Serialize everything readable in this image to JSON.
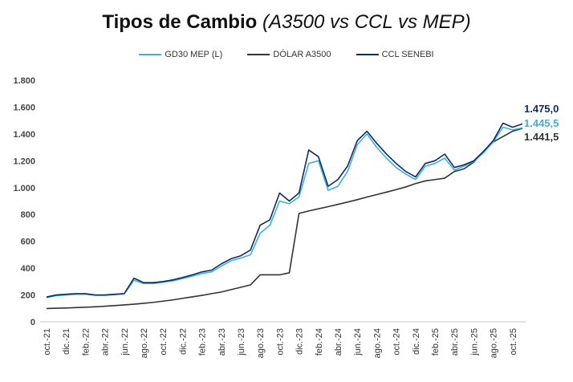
{
  "chart_data": {
    "type": "line",
    "title": "Tipos de Cambio",
    "subtitle": "(A3500 vs CCL vs MEP)",
    "xlabel": "",
    "ylabel": "",
    "ylim": [
      0,
      1800
    ],
    "yticks": [
      0,
      200,
      400,
      600,
      800,
      1000,
      1200,
      1400,
      1600,
      1800
    ],
    "ytick_labels": [
      "0",
      "200",
      "400",
      "600",
      "800",
      "1.000",
      "1.200",
      "1.400",
      "1.600",
      "1.800"
    ],
    "xtick_labels": [
      "oct.-21",
      "dic.-21",
      "feb.-22",
      "abr.-22",
      "jun.-22",
      "ago.-22",
      "oct.-22",
      "dic.-22",
      "feb.-23",
      "abr.-23",
      "jun.-23",
      "ago.-23",
      "oct.-23",
      "dic.-23",
      "feb.-24",
      "abr.-24",
      "jun.-24",
      "ago.-24",
      "oct.-24",
      "dic.-24",
      "feb.-25",
      "abr.-25",
      "jun.-25",
      "ago.-25",
      "oct.-25"
    ],
    "x": [
      "oct-21",
      "nov-21",
      "dic-21",
      "ene-22",
      "feb-22",
      "mar-22",
      "abr-22",
      "may-22",
      "jun-22",
      "jul-22",
      "ago-22",
      "sep-22",
      "oct-22",
      "nov-22",
      "dic-22",
      "ene-23",
      "feb-23",
      "mar-23",
      "abr-23",
      "may-23",
      "jun-23",
      "jul-23",
      "ago-23",
      "sep-23",
      "oct-23",
      "nov-23",
      "dic-23",
      "ene-24",
      "feb-24",
      "mar-24",
      "abr-24",
      "may-24",
      "jun-24",
      "jul-24",
      "ago-24",
      "sep-24",
      "oct-24",
      "nov-24",
      "dic-24",
      "ene-25",
      "feb-25",
      "mar-25",
      "abr-25",
      "may-25",
      "jun-25",
      "jul-25",
      "ago-25",
      "sep-25",
      "oct-25",
      "nov-25"
    ],
    "grid": false,
    "legend": "top",
    "series": [
      {
        "name": "GD30 MEP (L)",
        "color": "#3bb3d6",
        "values": [
          180,
          195,
          200,
          205,
          205,
          198,
          198,
          202,
          208,
          310,
          285,
          285,
          295,
          305,
          322,
          340,
          360,
          372,
          415,
          455,
          475,
          500,
          660,
          720,
          900,
          880,
          930,
          1180,
          1200,
          980,
          1010,
          1120,
          1320,
          1400,
          1300,
          1220,
          1150,
          1100,
          1060,
          1160,
          1180,
          1220,
          1130,
          1160,
          1195,
          1260,
          1340,
          1450,
          1430,
          1445.5
        ],
        "last_label": "1.445,5"
      },
      {
        "name": "DÓLAR A3500",
        "color": "#333333",
        "values": [
          99,
          101,
          103,
          106,
          109,
          112,
          116,
          121,
          126,
          131,
          138,
          145,
          154,
          163,
          175,
          186,
          197,
          210,
          222,
          240,
          257,
          275,
          350,
          350,
          350,
          365,
          808,
          826,
          842,
          858,
          875,
          892,
          910,
          930,
          948,
          966,
          985,
          1005,
          1030,
          1050,
          1060,
          1070,
          1120,
          1140,
          1190,
          1270,
          1340,
          1380,
          1420,
          1441.5
        ],
        "last_label": "1.441,5"
      },
      {
        "name": "CCL SENEBI",
        "color": "#0d2a6b",
        "values": [
          185,
          200,
          205,
          210,
          210,
          200,
          200,
          205,
          210,
          325,
          292,
          292,
          300,
          312,
          330,
          350,
          372,
          385,
          432,
          470,
          492,
          535,
          720,
          760,
          960,
          900,
          960,
          1280,
          1230,
          1010,
          1060,
          1160,
          1350,
          1420,
          1330,
          1250,
          1180,
          1120,
          1080,
          1180,
          1200,
          1250,
          1150,
          1170,
          1200,
          1270,
          1350,
          1480,
          1450,
          1475.0
        ],
        "last_label": "1.475,0"
      }
    ]
  }
}
